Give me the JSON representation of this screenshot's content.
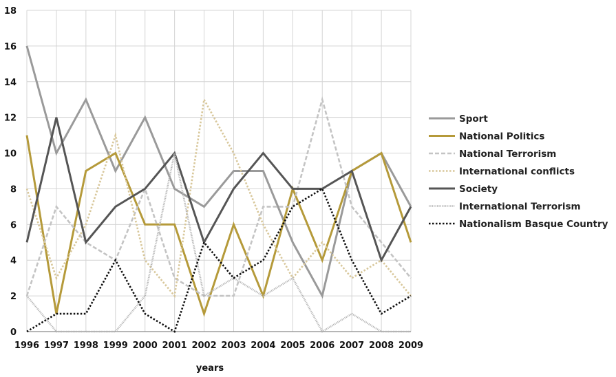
{
  "chart_data": {
    "type": "line",
    "title": "",
    "xlabel": "years",
    "ylabel": "",
    "x": [
      "1996",
      "1997",
      "1998",
      "1999",
      "2000",
      "2001",
      "2002",
      "2003",
      "2004",
      "2005",
      "2006",
      "2007",
      "2008",
      "2009"
    ],
    "ylim": [
      0,
      18
    ],
    "yticks": [
      0,
      2,
      4,
      6,
      8,
      10,
      12,
      14,
      16,
      18
    ],
    "grid": true,
    "legend_position": "right",
    "series": [
      {
        "name": "Sport",
        "color": "#9a9a9a",
        "style": "solid",
        "values": [
          16,
          10,
          13,
          9,
          12,
          8,
          7,
          9,
          9,
          5,
          2,
          9,
          10,
          7
        ]
      },
      {
        "name": "National Politics",
        "color": "#b59a3a",
        "style": "solid",
        "values": [
          11,
          1,
          9,
          10,
          6,
          6,
          1,
          6,
          2,
          8,
          4,
          9,
          10,
          5
        ]
      },
      {
        "name": "National Terrorism",
        "color": "#c4c4c4",
        "style": "dashed",
        "values": [
          2,
          7,
          5,
          4,
          8,
          3,
          2,
          2,
          7,
          7,
          13,
          7,
          5,
          3
        ]
      },
      {
        "name": "International conflicts",
        "color": "#d8c79a",
        "style": "dotted",
        "values": [
          8,
          3,
          6,
          11,
          4,
          2,
          13,
          10,
          6,
          3,
          5,
          3,
          4,
          2
        ]
      },
      {
        "name": "Society",
        "color": "#555555",
        "style": "solid",
        "values": [
          5,
          12,
          5,
          7,
          8,
          10,
          5,
          8,
          10,
          8,
          8,
          9,
          4,
          7
        ]
      },
      {
        "name": "International Terrorism",
        "color": "#b5b5b5",
        "style": "fine-dotted",
        "values": [
          2,
          0,
          0,
          0,
          2,
          10,
          2,
          3,
          2,
          3,
          0,
          1,
          0,
          0
        ]
      },
      {
        "name": "Nationalism Basque Country",
        "color": "#111111",
        "style": "dotted",
        "values": [
          0,
          1,
          1,
          4,
          1,
          0,
          5,
          3,
          4,
          7,
          8,
          4,
          1,
          2
        ]
      }
    ]
  }
}
